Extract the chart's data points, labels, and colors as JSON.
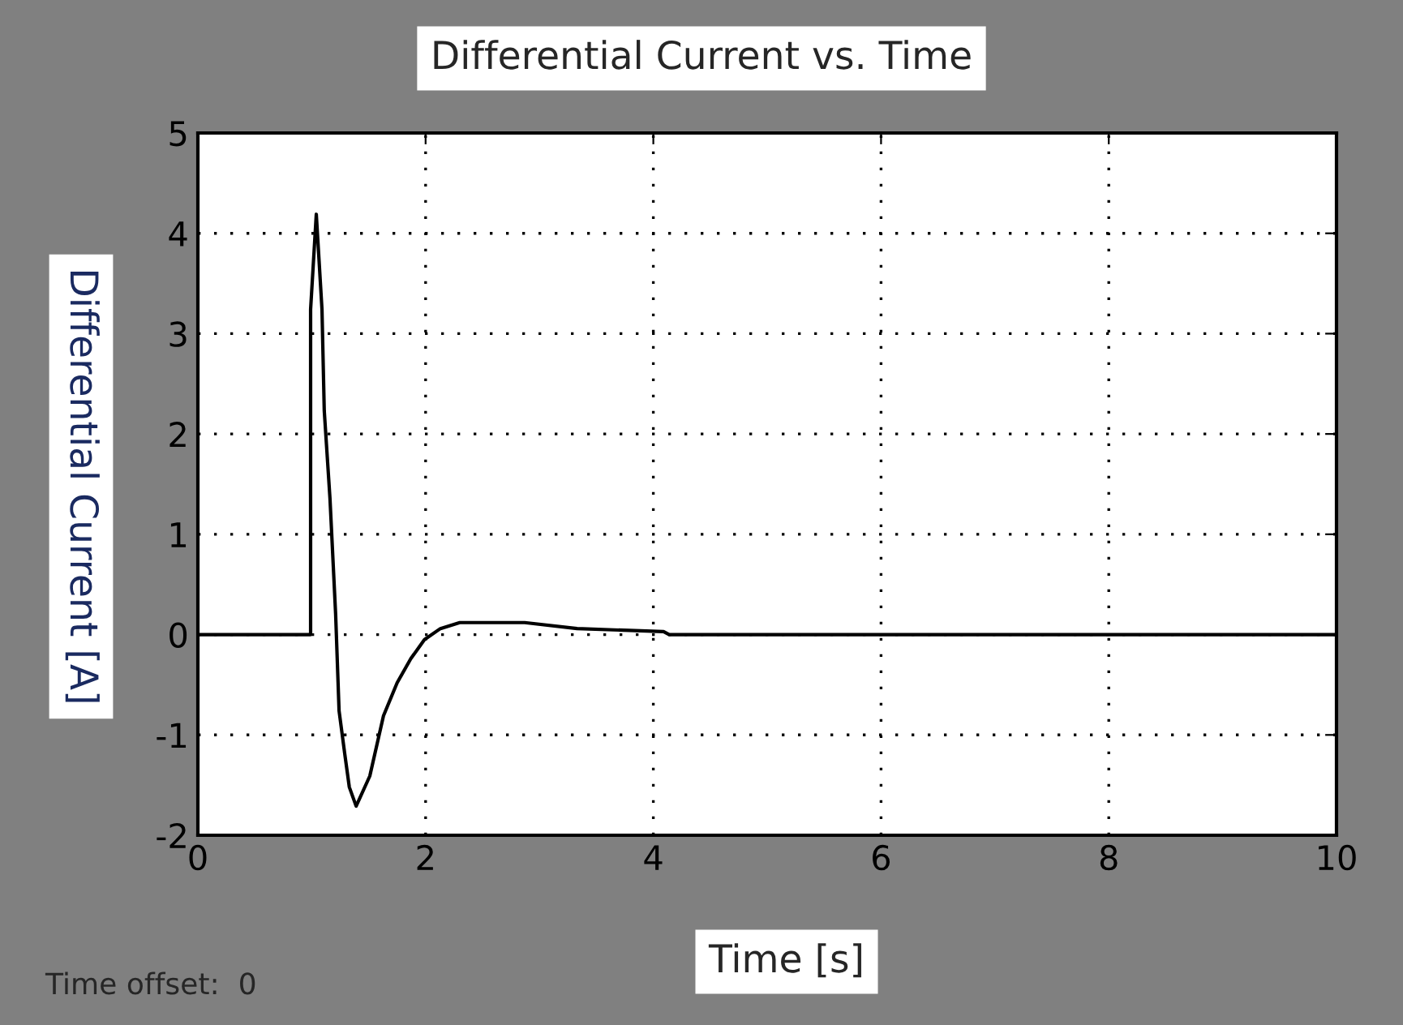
{
  "chart_data": {
    "type": "line",
    "title": "Differential Current vs. Time",
    "xlabel": "Time [s]",
    "ylabel": "Differential Current [A]",
    "annotations": [
      "Time offset:  0"
    ],
    "series": [
      {
        "color": "#000000",
        "x": [
          0,
          0.99,
          0.99,
          1.04,
          1.09,
          1.11,
          1.16,
          1.21,
          1.24,
          1.29,
          1.33,
          1.39,
          1.51,
          1.63,
          1.75,
          1.87,
          1.99,
          2.13,
          2.3,
          2.87,
          3.33,
          4.09,
          4.14,
          10
        ],
        "values": [
          0,
          0,
          3.24,
          4.19,
          3.24,
          2.23,
          1.36,
          0.2,
          -0.76,
          -1.19,
          -1.52,
          -1.71,
          -1.41,
          -0.81,
          -0.48,
          -0.24,
          -0.05,
          0.06,
          0.12,
          0.12,
          0.06,
          0.03,
          0,
          0
        ]
      }
    ],
    "xlim": [
      0,
      10
    ],
    "xticks": [
      0,
      2,
      4,
      6,
      8,
      10
    ],
    "ylim": [
      -2,
      5
    ],
    "yticks": [
      -2,
      -1,
      0,
      1,
      2,
      3,
      4,
      5
    ],
    "grid": true,
    "line_style": "solid",
    "marker": "none",
    "legend": false
  }
}
